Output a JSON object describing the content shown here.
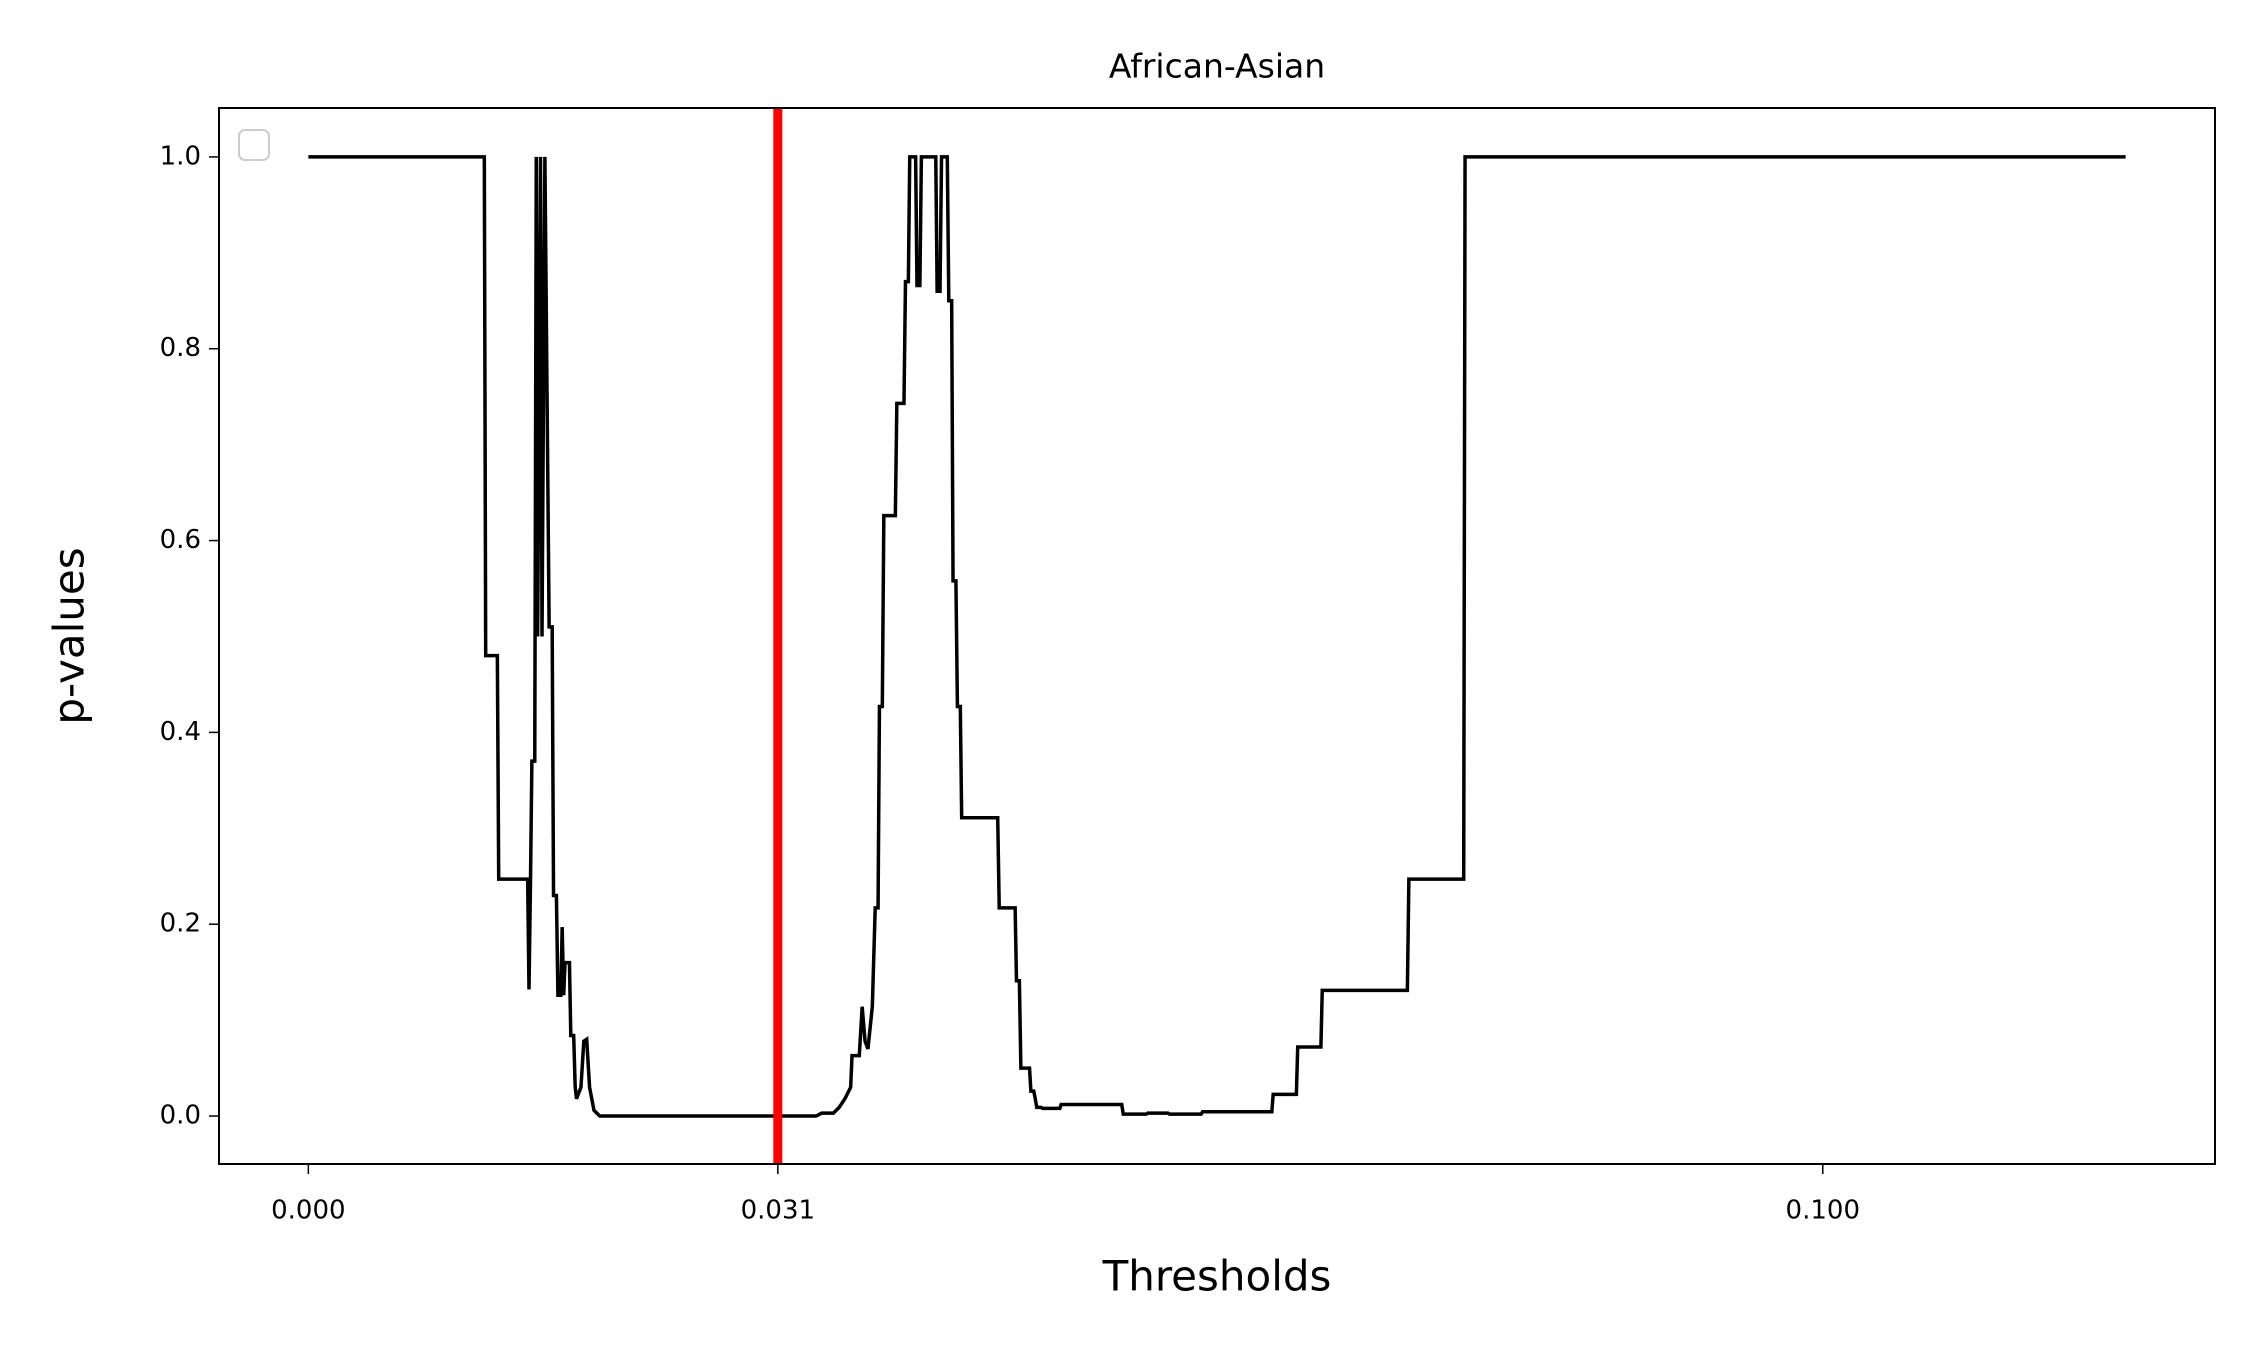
{
  "chart_data": {
    "type": "line",
    "title": "African-Asian",
    "x_label": "Thresholds",
    "y_label": "p-values",
    "color": "#000000",
    "x": [
      0,
      0.01162,
      0.01171,
      0.01248,
      0.01257,
      0.01448,
      0.01457,
      0.01467,
      0.01476,
      0.01495,
      0.01505,
      0.01514,
      0.01533,
      0.01543,
      0.01562,
      0.0159,
      0.0161,
      0.01619,
      0.01638,
      0.01648,
      0.01667,
      0.01676,
      0.01686,
      0.01695,
      0.01724,
      0.01733,
      0.01752,
      0.01762,
      0.01771,
      0.018,
      0.01819,
      0.01838,
      0.01857,
      0.01886,
      0.01924,
      0.03352,
      0.0339,
      0.03467,
      0.03505,
      0.03543,
      0.03581,
      0.0359,
      0.03638,
      0.03657,
      0.03676,
      0.03695,
      0.03724,
      0.03743,
      0.03762,
      0.03771,
      0.0379,
      0.038,
      0.03876,
      0.03886,
      0.03933,
      0.03943,
      0.03962,
      0.03971,
      0.0401,
      0.04019,
      0.04038,
      0.04048,
      0.04143,
      0.04152,
      0.04171,
      0.04181,
      0.04219,
      0.04229,
      0.04248,
      0.04257,
      0.04276,
      0.04286,
      0.04305,
      0.04314,
      0.04552,
      0.04562,
      0.04667,
      0.04676,
      0.04695,
      0.04705,
      0.04762,
      0.04771,
      0.0479,
      0.048,
      0.0481,
      0.04838,
      0.04848,
      0.04962,
      0.04971,
      0.05371,
      0.05381,
      0.05533,
      0.05543,
      0.05676,
      0.05686,
      0.05895,
      0.05905,
      0.06362,
      0.06371,
      0.06524,
      0.06533,
      0.06686,
      0.06695,
      0.07257,
      0.07267,
      0.07629,
      0.07638,
      0.12
    ],
    "values": [
      1,
      1,
      0.48,
      0.48,
      0.247,
      0.247,
      0.132,
      0.247,
      0.37,
      0.37,
      1,
      0.5,
      1,
      0.5,
      1,
      0.51,
      0.51,
      0.23,
      0.23,
      0.126,
      0.126,
      0.197,
      0.126,
      0.16,
      0.16,
      0.084,
      0.084,
      0.03,
      0.018,
      0.03,
      0.078,
      0.08,
      0.03,
      0.006,
      0,
      0,
      0.003,
      0.003,
      0.009,
      0.018,
      0.03,
      0.063,
      0.063,
      0.114,
      0.078,
      0.07,
      0.114,
      0.217,
      0.217,
      0.427,
      0.427,
      0.626,
      0.626,
      0.743,
      0.743,
      0.87,
      0.87,
      1,
      1,
      0.866,
      0.866,
      1,
      1,
      0.86,
      0.86,
      1,
      1,
      0.85,
      0.85,
      0.558,
      0.558,
      0.427,
      0.427,
      0.311,
      0.311,
      0.217,
      0.217,
      0.141,
      0.141,
      0.05,
      0.05,
      0.026,
      0.026,
      0.018,
      0.009,
      0.009,
      0.008,
      0.008,
      0.012,
      0.012,
      0.002,
      0.002,
      0.003,
      0.003,
      0.002,
      0.002,
      0.0045,
      0.0045,
      0.0226,
      0.0226,
      0.072,
      0.072,
      0.131,
      0.131,
      0.247,
      0.247,
      1,
      1
    ],
    "vline": {
      "x": 0.031,
      "color": "#ff0000"
    },
    "xlim": [
      -0.0059,
      0.1259
    ],
    "ylim": [
      -0.05,
      1.051
    ],
    "xticks": [
      {
        "value": 0,
        "label": "0.000"
      },
      {
        "value": 0.031,
        "label": "0.031"
      },
      {
        "value": 0.1,
        "label": "0.100"
      }
    ],
    "yticks": [
      {
        "value": 0,
        "label": "0.0"
      },
      {
        "value": 0.2,
        "label": "0.2"
      },
      {
        "value": 0.4,
        "label": "0.4"
      },
      {
        "value": 0.6,
        "label": "0.6"
      },
      {
        "value": 0.8,
        "label": "0.8"
      },
      {
        "value": 1.0,
        "label": "1.0"
      }
    ],
    "legend": "upper left",
    "grid": false
  }
}
